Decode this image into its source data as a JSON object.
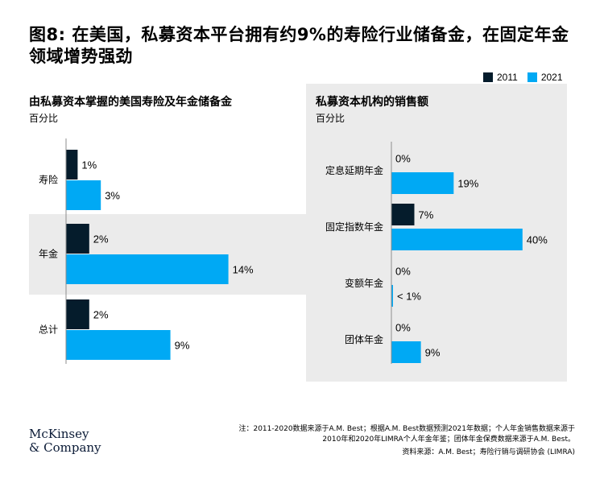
{
  "title": "图8: 在美国，私募资本平台拥有约9%的寿险行业储备金，在固定年金领域增势强劲",
  "legend": [
    {
      "label": "2011",
      "color": "#051c2c"
    },
    {
      "label": "2021",
      "color": "#00a9f4"
    }
  ],
  "footnotes": {
    "note_line1": "注：2011-2020数据来源于A.M. Best；根据A.M. Best数据预测2021年数据；个人年金销售数据来源于",
    "note_line2": "2010年和2020年LIMRA个人年金年鉴；团体年金保费数据来源于A.M. Best。",
    "source": "资料来源：A.M. Best；寿险行销与调研协会 (LIMRA)"
  },
  "logo": {
    "line1": "McKinsey",
    "line2": "& Company"
  },
  "chart_data": [
    {
      "type": "bar",
      "orientation": "horizontal",
      "title": "由私募资本掌握的美国寿险及年金储备金",
      "unit_label": "百分比",
      "categories": [
        "寿险",
        "年金",
        "总计"
      ],
      "series": [
        {
          "name": "2011",
          "values": [
            1,
            2,
            2
          ],
          "labels": [
            "1%",
            "2%",
            "2%"
          ]
        },
        {
          "name": "2021",
          "values": [
            3,
            14,
            9
          ],
          "labels": [
            "3%",
            "14%",
            "9%"
          ]
        }
      ],
      "highlight_category": "年金"
    },
    {
      "type": "bar",
      "orientation": "horizontal",
      "title": "私募资本机构的销售额",
      "unit_label": "百分比",
      "categories": [
        "定息延期年金",
        "固定指数年金",
        "变额年金",
        "团体年金"
      ],
      "series": [
        {
          "name": "2011",
          "values": [
            0,
            7,
            0,
            0
          ],
          "labels": [
            "0%",
            "7%",
            "0%",
            "0%"
          ]
        },
        {
          "name": "2021",
          "values": [
            19,
            40,
            0.2,
            9
          ],
          "labels": [
            "19%",
            "40%",
            "< 1%",
            "9%"
          ]
        }
      ],
      "highlight_panel": true
    }
  ]
}
